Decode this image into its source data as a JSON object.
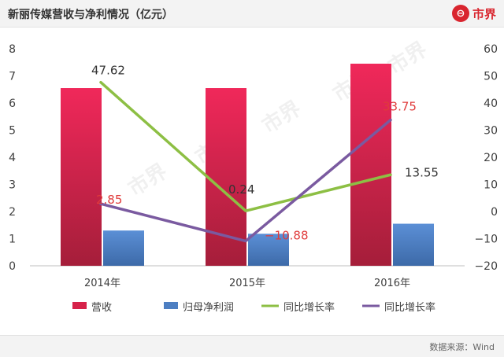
{
  "header": {
    "title": "新丽传媒营收与净利情况（亿元）",
    "logo_text": "市界"
  },
  "watermark": "市界",
  "chart_data": {
    "type": "bar",
    "categories": [
      "2014年",
      "2015年",
      "2016年"
    ],
    "series": [
      {
        "name": "营收",
        "kind": "bar",
        "axis": "left",
        "color": "#d6224a",
        "values": [
          6.55,
          6.55,
          7.45
        ]
      },
      {
        "name": "归母净利润",
        "kind": "bar",
        "axis": "left",
        "color": "#4d7fc2",
        "values": [
          1.3,
          1.18,
          1.55
        ]
      },
      {
        "name": "同比增长率",
        "kind": "line",
        "axis": "right",
        "color": "#8dbf44",
        "values": [
          47.62,
          0.24,
          13.55
        ],
        "labels": [
          "47.62",
          "0.24",
          "13.55"
        ],
        "label_color": "#333333"
      },
      {
        "name": "同比增长率",
        "kind": "line",
        "axis": "right",
        "color": "#7a5aa0",
        "values": [
          2.85,
          -10.88,
          33.75
        ],
        "labels": [
          "2.85",
          "−10.88",
          "33.75"
        ],
        "label_color": "#e03b3b"
      }
    ],
    "ylim_left": [
      0,
      8
    ],
    "yticks_left": [
      "0",
      "1",
      "2",
      "3",
      "4",
      "5",
      "6",
      "7",
      "8"
    ],
    "ylim_right": [
      -20,
      60
    ],
    "yticks_right": [
      "−20",
      "−10",
      "0",
      "10",
      "20",
      "30",
      "40",
      "50",
      "60"
    ],
    "grid": false,
    "legend_position": "bottom"
  },
  "footer": {
    "source": "数据来源：Wind"
  }
}
